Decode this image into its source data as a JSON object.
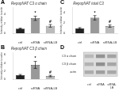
{
  "chart_data": [
    {
      "type": "bar",
      "title": "RepopNAT C3 α chain",
      "ylabel": "Intensity relative to actin",
      "categories": [
        "ctrl",
        "siRNA",
        "siRNA-LB"
      ],
      "values": [
        1.0,
        3.2,
        1.6
      ],
      "errors": [
        0.12,
        0.45,
        0.28
      ],
      "colors": [
        "#222222",
        "#999999",
        "#bbbbbb"
      ],
      "ylim": [
        0,
        5.5
      ],
      "yticks": [
        0,
        2,
        4
      ],
      "grid": false,
      "annotations": [
        {
          "text": "A"
        },
        {
          "text": "*",
          "category": "siRNA"
        },
        {
          "text": "#",
          "category": "siRNA-LB"
        }
      ]
    },
    {
      "type": "bar",
      "title": "RepopNAT total C3",
      "ylabel": "Intensity relative to actin",
      "categories": [
        "ctrl",
        "siRNA",
        "siRNA-LB"
      ],
      "values": [
        1.0,
        3.0,
        1.4
      ],
      "errors": [
        0.12,
        0.42,
        0.22
      ],
      "colors": [
        "#222222",
        "#999999",
        "#bbbbbb"
      ],
      "ylim": [
        0,
        5.0
      ],
      "yticks": [
        0,
        2,
        4
      ],
      "grid": false,
      "annotations": [
        {
          "text": "C"
        },
        {
          "text": "*",
          "category": "siRNA"
        },
        {
          "text": "#",
          "category": "siRNA-LB"
        }
      ]
    },
    {
      "type": "bar",
      "title": "RepopNAT C3 β chain",
      "ylabel": "Intensity relative to actin",
      "categories": [
        "ctrl",
        "siRNA",
        "siRNA-LB"
      ],
      "values": [
        1.0,
        3.5,
        0.8
      ],
      "errors": [
        0.18,
        0.85,
        0.18
      ],
      "colors": [
        "#222222",
        "#999999",
        "#bbbbbb"
      ],
      "ylim": [
        0,
        6.5
      ],
      "yticks": [
        0,
        2,
        4,
        6
      ],
      "grid": false,
      "annotations": [
        {
          "text": "B"
        },
        {
          "text": "*",
          "category": "siRNA"
        },
        {
          "text": "#",
          "category": "siRNA-LB"
        }
      ]
    },
    {
      "type": "heatmap",
      "categories": [
        "ctrl",
        "siRNA",
        "siRNA-\nLB"
      ],
      "rows": [
        "C3 α chain",
        "C3 β chain",
        "actin"
      ],
      "values": [
        [
          0.55,
          0.85,
          0.72
        ],
        [
          0.6,
          0.88,
          0.7
        ],
        [
          0.65,
          0.75,
          0.68
        ]
      ],
      "grid": false,
      "annotations": [
        {
          "text": "D"
        }
      ]
    }
  ]
}
